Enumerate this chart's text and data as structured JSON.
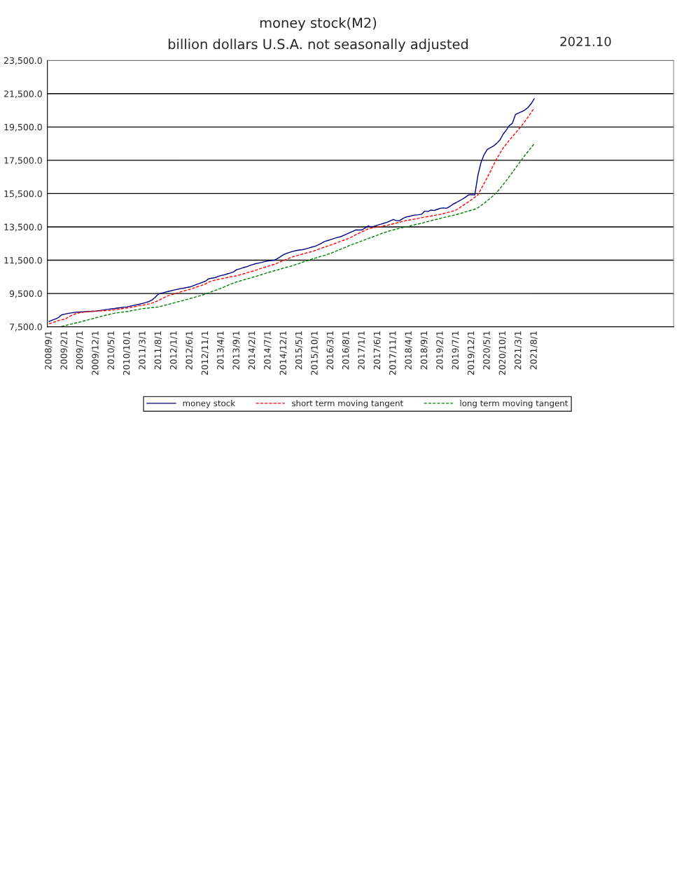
{
  "chart_data": {
    "type": "line",
    "title": "money stock(M2)",
    "subtitle": "billion dollars U.S.A. not seasonally adjusted",
    "annotations": [
      "2021.10"
    ],
    "categories": [
      "2008/9/1",
      null,
      null,
      null,
      null,
      "2009/2/1",
      null,
      null,
      null,
      null,
      "2009/7/1",
      null,
      null,
      null,
      null,
      "2009/12/1",
      null,
      null,
      null,
      null,
      "2010/5/1",
      null,
      null,
      null,
      null,
      "2010/10/1",
      null,
      null,
      null,
      null,
      "2011/3/1",
      null,
      null,
      null,
      null,
      "2011/8/1",
      null,
      null,
      null,
      null,
      "2012/1/1",
      null,
      null,
      null,
      null,
      "2012/6/1",
      null,
      null,
      null,
      null,
      "2012/11/1",
      null,
      null,
      null,
      null,
      "2013/4/1",
      null,
      null,
      null,
      null,
      "2013/9/1",
      null,
      null,
      null,
      null,
      "2014/2/1",
      null,
      null,
      null,
      null,
      "2014/7/1",
      null,
      null,
      null,
      null,
      "2014/12/1",
      null,
      null,
      null,
      null,
      "2015/5/1",
      null,
      null,
      null,
      null,
      "2015/10/1",
      null,
      null,
      null,
      null,
      "2016/3/1",
      null,
      null,
      null,
      null,
      "2016/8/1",
      null,
      null,
      null,
      null,
      "2017/1/1",
      null,
      null,
      null,
      null,
      "2017/6/1",
      null,
      null,
      null,
      null,
      "2017/11/1",
      null,
      null,
      null,
      null,
      "2018/4/1",
      null,
      null,
      null,
      null,
      "2018/9/1",
      null,
      null,
      null,
      null,
      "2019/2/1",
      null,
      null,
      null,
      null,
      "2019/7/1",
      null,
      null,
      null,
      null,
      "2019/12/1",
      null,
      null,
      null,
      null,
      "2020/5/1",
      null,
      null,
      null,
      null,
      "2020/10/1",
      null,
      null,
      null,
      null,
      "2021/3/1",
      null,
      null,
      null,
      null,
      "2021/8/1",
      null,
      null,
      null,
      null,
      null,
      null,
      null,
      null,
      null,
      null,
      null,
      null,
      null,
      null,
      null,
      null,
      null,
      null,
      null,
      null,
      null,
      null,
      null,
      null,
      null,
      null,
      null,
      null,
      null,
      null,
      null,
      null,
      null,
      null,
      null,
      null,
      null,
      null,
      null,
      null,
      null,
      null,
      null,
      null
    ],
    "series": [
      {
        "name": "money stock",
        "color": "#000080",
        "line_style": "solid",
        "values": [
          7820,
          7900,
          7960,
          8050,
          8210,
          8260,
          8300,
          8330,
          8360,
          8380,
          8390,
          8400,
          8410,
          8420,
          8430,
          8440,
          8470,
          8500,
          8530,
          8550,
          8580,
          8600,
          8630,
          8650,
          8680,
          8700,
          8740,
          8780,
          8820,
          8860,
          8910,
          8960,
          9020,
          9120,
          9280,
          9470,
          9520,
          9570,
          9620,
          9660,
          9710,
          9750,
          9790,
          9820,
          9860,
          9890,
          9960,
          10030,
          10100,
          10170,
          10240,
          10380,
          10420,
          10450,
          10520,
          10580,
          10620,
          10680,
          10730,
          10800,
          10940,
          10980,
          11050,
          11100,
          11170,
          11230,
          11290,
          11330,
          11370,
          11420,
          11460,
          11480,
          11500,
          11600,
          11720,
          11840,
          11920,
          11980,
          12030,
          12080,
          12110,
          12130,
          12180,
          12230,
          12290,
          12340,
          12420,
          12520,
          12620,
          12680,
          12740,
          12800,
          12860,
          12900,
          12980,
          13060,
          13150,
          13230,
          13320,
          13310,
          13320,
          13440,
          13560,
          13490,
          13540,
          13610,
          13660,
          13720,
          13780,
          13860,
          13950,
          13870,
          13880,
          14000,
          14090,
          14130,
          14180,
          14210,
          14230,
          14260,
          14450,
          14420,
          14510,
          14480,
          14550,
          14620,
          14640,
          14620,
          14720,
          14860,
          14950,
          15060,
          15160,
          15280,
          15420,
          15440,
          15420,
          16600,
          17380,
          17850,
          18150,
          18260,
          18360,
          18520,
          18710,
          19050,
          19300,
          19580,
          19720,
          20250,
          20340,
          20420,
          20520,
          20670,
          20900,
          21200,
          null,
          null,
          null,
          null,
          null,
          null,
          null,
          null,
          null,
          null,
          null,
          null,
          null,
          null,
          null,
          null,
          null,
          null,
          null,
          null,
          null,
          null,
          null,
          null,
          null,
          null,
          null,
          null,
          null,
          null,
          null,
          null,
          null,
          null,
          null,
          null,
          null,
          null,
          null,
          null,
          null,
          null,
          null,
          null
        ]
      },
      {
        "name": "short term moving tangent",
        "color": "#ff0000",
        "line_style": "dashed",
        "values": [
          7680,
          7740,
          7800,
          7870,
          7920,
          7950,
          8060,
          8160,
          8250,
          8300,
          8350,
          8380,
          8400,
          8420,
          8430,
          8440,
          8450,
          8460,
          8470,
          8480,
          8490,
          8520,
          8550,
          8580,
          8610,
          8630,
          8660,
          8700,
          8730,
          8770,
          8800,
          8840,
          8880,
          8930,
          9000,
          9080,
          9180,
          9280,
          9360,
          9420,
          9470,
          9530,
          9590,
          9650,
          9700,
          9750,
          9810,
          9880,
          9940,
          10000,
          10080,
          10180,
          10250,
          10300,
          10340,
          10380,
          10420,
          10460,
          10500,
          10530,
          10560,
          10620,
          10670,
          10730,
          10790,
          10840,
          10900,
          10960,
          11020,
          11080,
          11140,
          11200,
          11250,
          11330,
          11410,
          11480,
          11560,
          11640,
          11710,
          11760,
          11820,
          11870,
          11920,
          11970,
          12020,
          12080,
          12150,
          12220,
          12290,
          12350,
          12410,
          12480,
          12550,
          12620,
          12690,
          12760,
          12830,
          12930,
          13030,
          13120,
          13210,
          13300,
          13390,
          13430,
          13460,
          13490,
          13520,
          13560,
          13590,
          13640,
          13690,
          13730,
          13780,
          13830,
          13880,
          13910,
          13940,
          13980,
          14010,
          14050,
          14090,
          14120,
          14150,
          14190,
          14220,
          14250,
          14300,
          14350,
          14400,
          14450,
          14510,
          14630,
          14760,
          14880,
          15010,
          15140,
          15280,
          15420,
          15780,
          16120,
          16470,
          16840,
          17220,
          17590,
          17910,
          18220,
          18460,
          18700,
          18920,
          19140,
          19360,
          19580,
          19840,
          20100,
          20370,
          20640,
          null,
          null,
          null,
          null,
          null,
          null,
          null,
          null,
          null,
          null,
          null,
          null,
          null,
          null,
          null,
          null,
          null,
          null,
          null,
          null,
          null,
          null,
          null,
          null,
          null,
          null,
          null,
          null,
          null,
          null,
          null,
          null,
          null,
          null,
          null,
          null,
          null,
          null,
          null,
          null,
          null,
          null,
          null,
          null
        ]
      },
      {
        "name": "long term moving tangent",
        "color": "#008000",
        "line_style": "dashed",
        "values": [
          null,
          null,
          null,
          null,
          7520,
          7570,
          7610,
          7660,
          7700,
          7750,
          7790,
          7840,
          7890,
          7940,
          7990,
          8040,
          8090,
          8140,
          8190,
          8230,
          8280,
          8310,
          8340,
          8370,
          8390,
          8420,
          8450,
          8490,
          8520,
          8560,
          8590,
          8610,
          8630,
          8650,
          8670,
          8690,
          8740,
          8790,
          8840,
          8890,
          8940,
          8990,
          9040,
          9090,
          9140,
          9190,
          9240,
          9300,
          9350,
          9410,
          9470,
          9540,
          9610,
          9680,
          9750,
          9820,
          9900,
          9980,
          10060,
          10130,
          10200,
          10250,
          10310,
          10360,
          10410,
          10470,
          10520,
          10580,
          10640,
          10700,
          10760,
          10810,
          10870,
          10920,
          10970,
          11030,
          11080,
          11130,
          11180,
          11250,
          11310,
          11380,
          11440,
          11500,
          11570,
          11620,
          11680,
          11740,
          11790,
          11850,
          11910,
          11990,
          12070,
          12150,
          12220,
          12300,
          12380,
          12450,
          12520,
          12590,
          12660,
          12730,
          12800,
          12870,
          12940,
          13010,
          13080,
          13150,
          13220,
          13270,
          13320,
          13370,
          13410,
          13460,
          13500,
          13550,
          13590,
          13640,
          13680,
          13710,
          13780,
          13820,
          13870,
          13920,
          13960,
          14010,
          14060,
          14100,
          14150,
          14190,
          14230,
          14290,
          14340,
          14400,
          14450,
          14510,
          14560,
          14650,
          14780,
          14920,
          15070,
          15230,
          15390,
          15560,
          15790,
          16030,
          16260,
          16520,
          16770,
          17030,
          17290,
          17540,
          17800,
          18030,
          18270,
          18500,
          null,
          null,
          null,
          null,
          null,
          null,
          null,
          null,
          null,
          null,
          null,
          null,
          null,
          null,
          null,
          null,
          null,
          null,
          null,
          null,
          null,
          null,
          null,
          null,
          null,
          null,
          null,
          null,
          null,
          null,
          null,
          null,
          null,
          null,
          null,
          null,
          null,
          null,
          null,
          null,
          null,
          null,
          null,
          null
        ]
      }
    ],
    "ylim": [
      7500,
      23500
    ],
    "yticks": [
      {
        "value": 7500,
        "label": "7,500.0"
      },
      {
        "value": 9500,
        "label": "9,500.0"
      },
      {
        "value": 11500,
        "label": "11,500.0"
      },
      {
        "value": 13500,
        "label": "13,500.0"
      },
      {
        "value": 15500,
        "label": "15,500.0"
      },
      {
        "value": 17500,
        "label": "17,500.0"
      },
      {
        "value": 19500,
        "label": "19,500.0"
      },
      {
        "value": 21500,
        "label": "21,500.0"
      },
      {
        "value": 23500,
        "label": "23,500.0"
      }
    ],
    "grid": "y",
    "legend": "bottom",
    "marker": "none"
  }
}
